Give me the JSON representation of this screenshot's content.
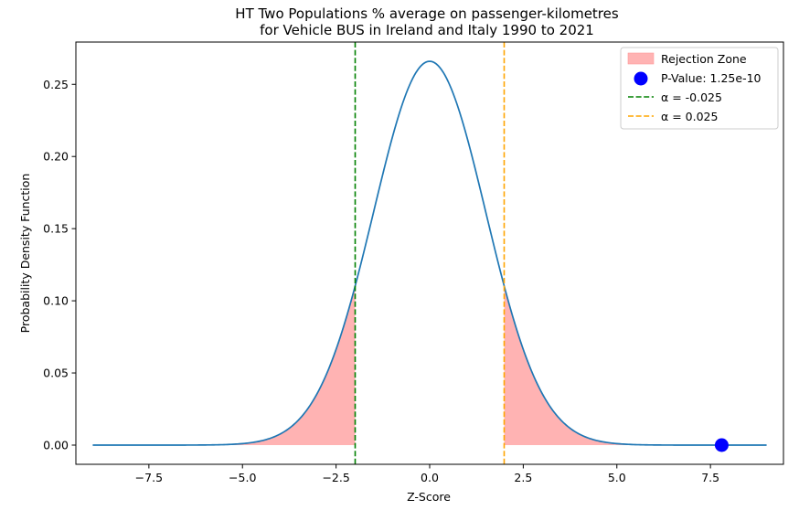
{
  "chart_data": {
    "type": "line",
    "title_line1": "HT Two Populations % average on passenger-kilometres",
    "title_line2": "for Vehicle BUS in Ireland and Italy 1990 to 2021",
    "xlabel": "Z-Score",
    "ylabel": "Probability Density Function",
    "xlim": [
      -9.45,
      9.45
    ],
    "ylim": [
      -0.0133,
      0.2793
    ],
    "x_ticks": [
      -7.5,
      -5.0,
      -2.5,
      0.0,
      2.5,
      5.0,
      7.5
    ],
    "x_tick_labels": [
      "−7.5",
      "−5.0",
      "−2.5",
      "0.0",
      "2.5",
      "5.0",
      "7.5"
    ],
    "y_ticks": [
      0.0,
      0.05,
      0.1,
      0.15,
      0.2,
      0.25
    ],
    "y_tick_labels": [
      "0.00",
      "0.05",
      "0.10",
      "0.15",
      "0.20",
      "0.25"
    ],
    "curve": {
      "description_free": true,
      "x_range": [
        -9,
        9
      ],
      "peak_value": 0.266,
      "scale": 1.5
    },
    "critical_left": -1.99,
    "critical_right": 1.99,
    "p_value_point": {
      "x": 7.8,
      "y": 0.0
    },
    "grid": false,
    "legend_position": "top-right",
    "legend": [
      {
        "label": "Rejection Zone",
        "kind": "patch",
        "color": "#ffb3b3"
      },
      {
        "label": "P-Value: 1.25e-10",
        "kind": "marker",
        "color": "#0000ff"
      },
      {
        "label": "α = -0.025",
        "kind": "dashed",
        "color": "#008000"
      },
      {
        "label": "α = 0.025",
        "kind": "dashed",
        "color": "#ffa500"
      }
    ],
    "colors": {
      "curve": "#1f77b4",
      "rejection_fill": "#ffb3b3",
      "left_line": "#008000",
      "right_line": "#ffa500",
      "point": "#0000ff"
    }
  }
}
